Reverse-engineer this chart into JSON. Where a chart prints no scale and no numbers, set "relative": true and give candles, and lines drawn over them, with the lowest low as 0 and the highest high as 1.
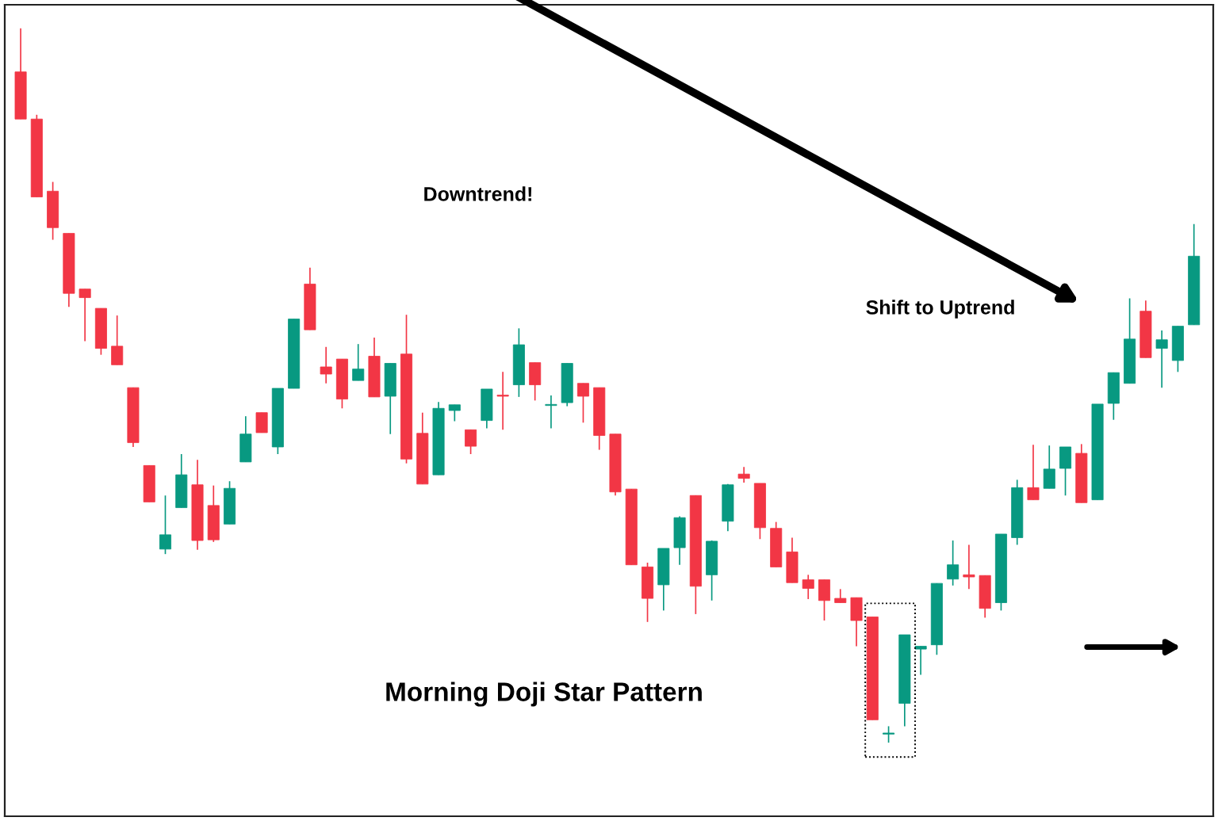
{
  "chart_data": {
    "type": "candlestick",
    "relative": true,
    "annotations": [
      "Downtrend!",
      "Shift to Uptrend",
      "Morning Doji Star Pattern"
    ],
    "categories": [
      null,
      null,
      null,
      null,
      null,
      null,
      null,
      null,
      null,
      null,
      null,
      null,
      null,
      null,
      null,
      null,
      null,
      null,
      null,
      null,
      null,
      null,
      null,
      null,
      null,
      null,
      null,
      null,
      null,
      null,
      null,
      null,
      null,
      null,
      null,
      null,
      null,
      null,
      null,
      null,
      null,
      null,
      null,
      null,
      null,
      null,
      null,
      null,
      null,
      null,
      null,
      null,
      null,
      null,
      null,
      null,
      null,
      null,
      null,
      null,
      null,
      null,
      null,
      null,
      null,
      null,
      null,
      null,
      null,
      null,
      null,
      null,
      null,
      null
    ],
    "ohlc": [
      [
        0.939,
        1.0,
        0.873,
        0.873
      ],
      [
        0.873,
        0.879,
        0.764,
        0.764
      ],
      [
        0.772,
        0.785,
        0.704,
        0.721
      ],
      [
        0.713,
        0.713,
        0.61,
        0.629
      ],
      [
        0.635,
        0.635,
        0.562,
        0.623
      ],
      [
        0.608,
        0.608,
        0.543,
        0.552
      ],
      [
        0.555,
        0.598,
        0.529,
        0.529
      ],
      [
        0.497,
        0.497,
        0.414,
        0.42
      ],
      [
        0.388,
        0.388,
        0.337,
        0.337
      ],
      [
        0.271,
        0.346,
        0.264,
        0.291
      ],
      [
        0.329,
        0.404,
        0.329,
        0.375
      ],
      [
        0.361,
        0.396,
        0.27,
        0.283
      ],
      [
        0.332,
        0.36,
        0.281,
        0.284
      ],
      [
        0.306,
        0.366,
        0.306,
        0.356
      ],
      [
        0.393,
        0.457,
        0.393,
        0.432
      ],
      [
        0.462,
        0.462,
        0.434,
        0.434
      ],
      [
        0.414,
        0.496,
        0.404,
        0.496
      ],
      [
        0.496,
        0.593,
        0.496,
        0.593
      ],
      [
        0.642,
        0.665,
        0.578,
        0.578
      ],
      [
        0.526,
        0.554,
        0.503,
        0.516
      ],
      [
        0.537,
        0.537,
        0.468,
        0.481
      ],
      [
        0.507,
        0.558,
        0.507,
        0.523
      ],
      [
        0.541,
        0.567,
        0.484,
        0.484
      ],
      [
        0.485,
        0.531,
        0.432,
        0.531
      ],
      [
        0.544,
        0.599,
        0.391,
        0.397
      ],
      [
        0.433,
        0.462,
        0.362,
        0.362
      ],
      [
        0.375,
        0.477,
        0.375,
        0.468
      ],
      [
        0.465,
        0.473,
        0.45,
        0.473
      ],
      [
        0.438,
        0.438,
        0.404,
        0.415
      ],
      [
        0.451,
        0.495,
        0.44,
        0.495
      ],
      [
        0.486,
        0.519,
        0.438,
        0.485
      ],
      [
        0.501,
        0.58,
        0.484,
        0.557
      ],
      [
        0.532,
        0.532,
        0.479,
        0.501
      ],
      [
        0.472,
        0.486,
        0.44,
        0.473
      ],
      [
        0.476,
        0.531,
        0.471,
        0.531
      ],
      [
        0.503,
        0.503,
        0.448,
        0.485
      ],
      [
        0.497,
        0.497,
        0.41,
        0.43
      ],
      [
        0.432,
        0.432,
        0.346,
        0.351
      ],
      [
        0.355,
        0.355,
        0.249,
        0.249
      ],
      [
        0.246,
        0.252,
        0.169,
        0.202
      ],
      [
        0.221,
        0.272,
        0.185,
        0.272
      ],
      [
        0.273,
        0.317,
        0.249,
        0.315
      ],
      [
        0.346,
        0.346,
        0.18,
        0.219
      ],
      [
        0.235,
        0.283,
        0.199,
        0.282
      ],
      [
        0.31,
        0.362,
        0.296,
        0.361
      ],
      [
        0.376,
        0.386,
        0.364,
        0.37
      ],
      [
        0.363,
        0.363,
        0.285,
        0.301
      ],
      [
        0.3,
        0.309,
        0.246,
        0.246
      ],
      [
        0.267,
        0.287,
        0.224,
        0.224
      ],
      [
        0.228,
        0.235,
        0.201,
        0.216
      ],
      [
        0.228,
        0.228,
        0.171,
        0.199
      ],
      [
        0.202,
        0.215,
        0.196,
        0.196
      ],
      [
        0.203,
        0.203,
        0.135,
        0.171
      ],
      [
        0.176,
        0.176,
        0.032,
        0.032
      ],
      [
        0.012,
        0.023,
        0.0,
        0.013
      ],
      [
        0.055,
        0.151,
        0.023,
        0.151
      ],
      [
        0.131,
        0.135,
        0.095,
        0.135
      ],
      [
        0.137,
        0.223,
        0.123,
        0.223
      ],
      [
        0.229,
        0.283,
        0.22,
        0.249
      ],
      [
        0.235,
        0.277,
        0.215,
        0.232
      ],
      [
        0.234,
        0.234,
        0.175,
        0.188
      ],
      [
        0.196,
        0.292,
        0.185,
        0.292
      ],
      [
        0.287,
        0.368,
        0.277,
        0.357
      ],
      [
        0.357,
        0.417,
        0.34,
        0.34
      ],
      [
        0.356,
        0.416,
        0.356,
        0.383
      ],
      [
        0.384,
        0.414,
        0.346,
        0.414
      ],
      [
        0.405,
        0.418,
        0.336,
        0.336
      ],
      [
        0.34,
        0.474,
        0.34,
        0.474
      ],
      [
        0.475,
        0.518,
        0.452,
        0.518
      ],
      [
        0.503,
        0.622,
        0.503,
        0.565
      ],
      [
        0.604,
        0.619,
        0.539,
        0.539
      ],
      [
        0.552,
        0.577,
        0.497,
        0.564
      ],
      [
        0.535,
        0.583,
        0.519,
        0.583
      ],
      [
        0.585,
        0.726,
        0.585,
        0.681
      ]
    ],
    "colors": [
      "#f23645",
      "#f23645",
      "#f23645",
      "#f23645",
      "#f23645",
      "#f23645",
      "#f23645",
      "#f23645",
      "#f23645",
      "#089981",
      "#089981",
      "#f23645",
      "#f23645",
      "#089981",
      "#089981",
      "#f23645",
      "#089981",
      "#089981",
      "#f23645",
      "#f23645",
      "#f23645",
      "#089981",
      "#f23645",
      "#089981",
      "#f23645",
      "#f23645",
      "#089981",
      "#089981",
      "#f23645",
      "#089981",
      "#f23645",
      "#089981",
      "#f23645",
      "#089981",
      "#089981",
      "#f23645",
      "#f23645",
      "#f23645",
      "#f23645",
      "#f23645",
      "#089981",
      "#089981",
      "#f23645",
      "#089981",
      "#089981",
      "#f23645",
      "#f23645",
      "#f23645",
      "#f23645",
      "#f23645",
      "#f23645",
      "#f23645",
      "#f23645",
      "#f23645",
      "#089981",
      "#089981",
      "#089981",
      "#089981",
      "#089981",
      "#f23645",
      "#f23645",
      "#089981",
      "#089981",
      "#f23645",
      "#089981",
      "#089981",
      "#f23645",
      "#089981",
      "#089981",
      "#089981",
      "#f23645",
      "#089981",
      "#089981",
      "#089981"
    ]
  }
}
